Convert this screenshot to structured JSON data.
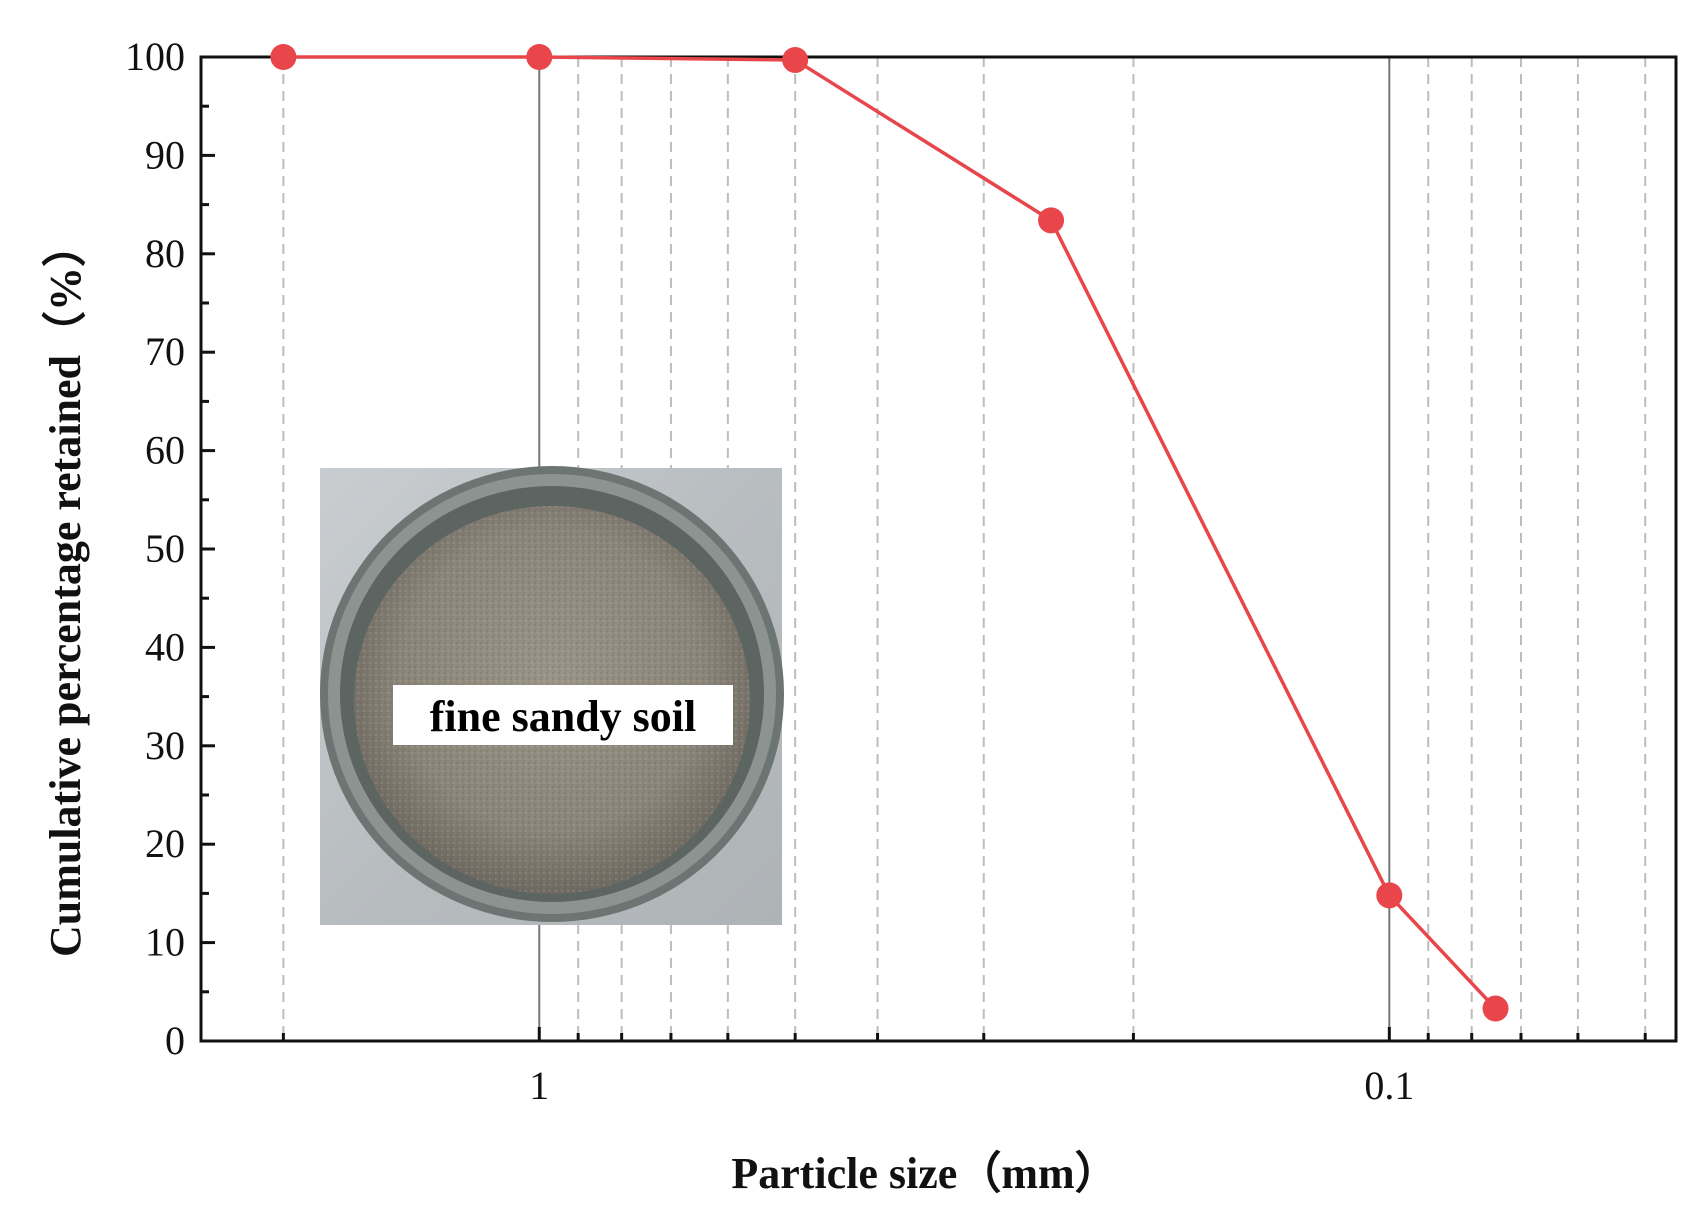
{
  "chart_data": {
    "type": "line",
    "xlabel": "Particle size（mm）",
    "ylabel": "Cumulative percentage retained（%）",
    "x_scale": "log",
    "x_reversed": true,
    "xlim": [
      2.5,
      0.046
    ],
    "ylim": [
      0,
      100
    ],
    "y_ticks": [
      0,
      10,
      20,
      30,
      40,
      50,
      60,
      70,
      80,
      90,
      100
    ],
    "x_tick_labels": [
      {
        "value": 1,
        "label": "1"
      },
      {
        "value": 0.1,
        "label": "0.1"
      }
    ],
    "grid": "dashed vertical minor gridlines, solid at decades",
    "series": [
      {
        "color": "#e8464b",
        "x": [
          2,
          1,
          0.5,
          0.25,
          0.1,
          0.075
        ],
        "y": [
          100,
          100,
          99.7,
          83.4,
          14.8,
          3.3
        ]
      }
    ],
    "annotations": [
      {
        "text": "fine sandy soil"
      }
    ]
  }
}
